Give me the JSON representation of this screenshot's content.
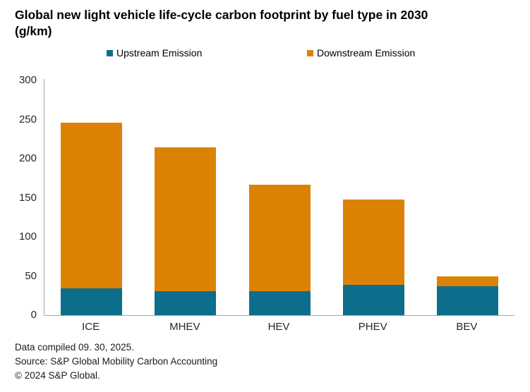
{
  "header": {
    "title": "Global new light vehicle life-cycle carbon footprint by fuel type in 2030",
    "title_unit": "(g/km)"
  },
  "legend": {
    "items": [
      {
        "label": "Upstream Emission",
        "color": "#0D6E8C"
      },
      {
        "label": "Downstream Emission",
        "color": "#DB8205"
      }
    ]
  },
  "chart_data": {
    "type": "bar",
    "stacked": true,
    "title": "Global new light vehicle life-cycle carbon footprint by fuel type in 2030 (g/km)",
    "categories": [
      "ICE",
      "MHEV",
      "HEV",
      "PHEV",
      "BEV"
    ],
    "series": [
      {
        "name": "Upstream Emission",
        "color": "#0D6E8C",
        "values": [
          34,
          31,
          31,
          39,
          37
        ]
      },
      {
        "name": "Downstream Emission",
        "color": "#DB8205",
        "values": [
          212,
          183,
          136,
          109,
          13
        ]
      }
    ],
    "totals": [
      246,
      214,
      167,
      148,
      50
    ],
    "xlabel": "",
    "ylabel": "",
    "ylim": [
      0,
      300
    ],
    "yticks": [
      0,
      50,
      100,
      150,
      200,
      250,
      300
    ],
    "grid": false,
    "legend_position": "top",
    "axis_color": "#A6A6A6"
  },
  "footer": {
    "lines": [
      "Data compiled 09. 30, 2025.",
      "Source: S&P Global Mobility Carbon Accounting",
      "© 2024 S&P Global."
    ]
  }
}
